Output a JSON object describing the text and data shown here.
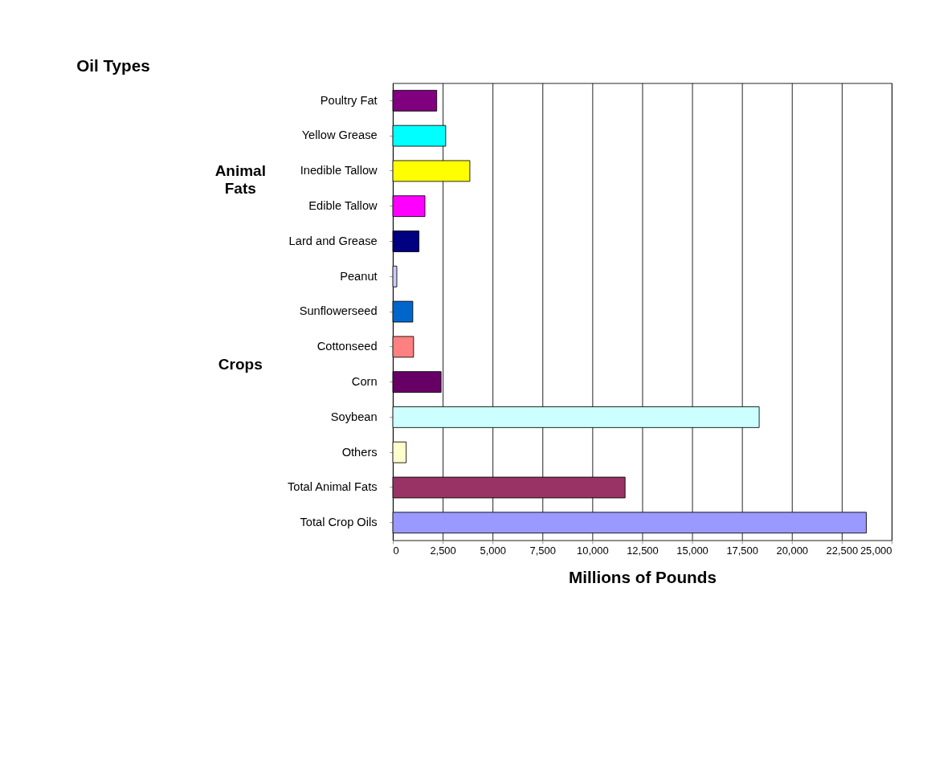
{
  "chart_data": {
    "type": "bar",
    "orientation": "horizontal",
    "title": "Oil Types",
    "xlabel": "Millions of Pounds",
    "categories": [
      "Poultry Fat",
      "Yellow Grease",
      "Inedible Tallow",
      "Edible Tallow",
      "Lard and Grease",
      "Peanut",
      "Sunflowerseed",
      "Cottonseed",
      "Corn",
      "Soybean",
      "Others",
      "Total Animal Fats",
      "Total Crop Oils"
    ],
    "values": [
      2200,
      2650,
      3860,
      1610,
      1310,
      200,
      1000,
      1040,
      2420,
      18360,
      670,
      11640,
      23730
    ],
    "colors": [
      "#800080",
      "#00ffff",
      "#ffff00",
      "#ff00ff",
      "#000080",
      "#ccccff",
      "#0066cc",
      "#ff8080",
      "#660066",
      "#ccffff",
      "#ffffcc",
      "#993366",
      "#9999ff"
    ],
    "xlim": [
      0,
      25000
    ],
    "xticks": [
      0,
      {
        "value": 2500,
        "label": "2,500"
      },
      {
        "value": 5000,
        "label": "5,000"
      },
      {
        "value": 7500,
        "label": "7,500"
      },
      {
        "value": 10000,
        "label": "10,000"
      },
      {
        "value": 12500,
        "label": "12,500"
      },
      {
        "value": 15000,
        "label": "15,000"
      },
      {
        "value": 17500,
        "label": "17,500"
      },
      {
        "value": 20000,
        "label": "20,000"
      },
      {
        "value": 22500,
        "label": "22,500"
      },
      {
        "value": 25000,
        "label": "25,000"
      }
    ],
    "grid": "x",
    "annotations": [
      "Animal Fats",
      "Crops"
    ]
  }
}
